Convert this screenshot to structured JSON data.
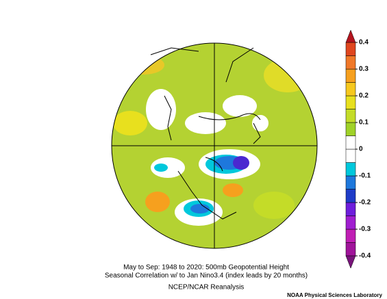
{
  "map": {
    "caption": [
      "May to Sep: 1948 to 2020: 500mb Geopotential Height",
      "Seasonal Correlation w/  to Jan Nino3.4 (index leads by 20 months)"
    ],
    "dataset": "NCEP/NCAR Reanalysis",
    "credit": "NOAA Physical Sciences Laboratory"
  },
  "colorbar": {
    "lim": [
      -0.4,
      0.4
    ],
    "ticks": [
      0.4,
      0.3,
      0.2,
      0.1,
      0,
      -0.1,
      -0.2,
      -0.3,
      -0.4
    ],
    "over_color": "#b4141e",
    "under_color": "#78147a",
    "colors": [
      "#a0149a",
      "#c01eb4",
      "#a01ed0",
      "#6e1edc",
      "#1e3cc8",
      "#1e78dc",
      "#00c8dc",
      "#ffffff",
      "#ffffff",
      "#a0d228",
      "#c4dc28",
      "#e8e01e",
      "#f6c81e",
      "#f6a01e",
      "#f07828",
      "#e0461e"
    ]
  }
}
